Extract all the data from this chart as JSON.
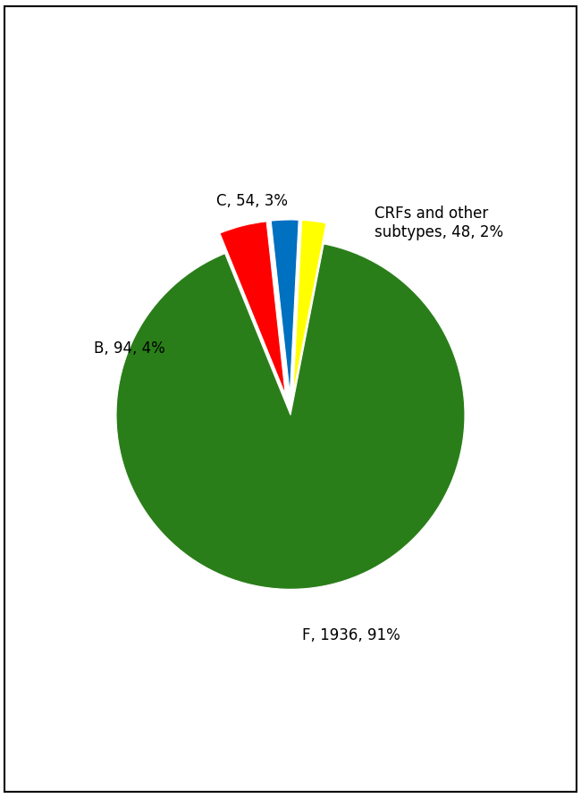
{
  "values": [
    1936,
    94,
    54,
    48
  ],
  "colors": [
    "#2a7e19",
    "#ff0000",
    "#0070c0",
    "#ffff00"
  ],
  "explode": [
    0.0,
    0.12,
    0.12,
    0.12
  ],
  "startangle": 79,
  "label_F": "F, 1936, 91%",
  "label_B": "B, 94, 4%",
  "label_C": "C, 54, 3%",
  "label_CRF": "CRFs and other\nsubtypes, 48, 2%",
  "figsize": [
    6.5,
    8.93
  ],
  "dpi": 100,
  "bg_color": "#ffffff",
  "fontsize": 12
}
